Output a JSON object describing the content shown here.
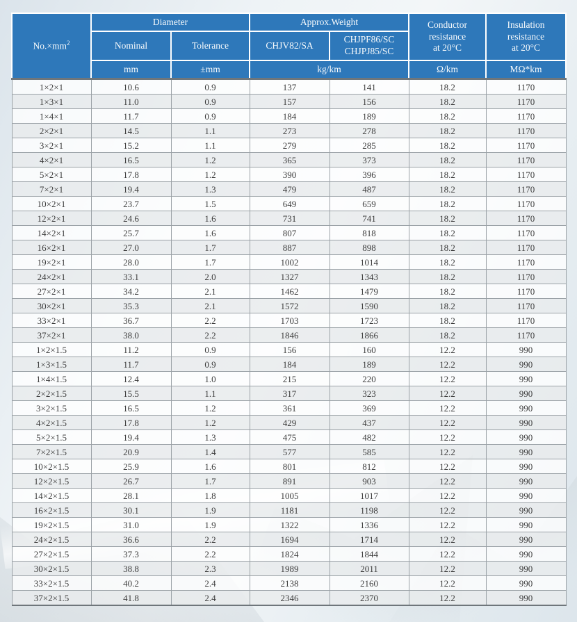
{
  "colors": {
    "header_blue": "#2e78ba",
    "row_alt": "rgba(233,235,237,0.82)",
    "grid_line": "#7e8488"
  },
  "table": {
    "header": {
      "no_label": "No.×mm",
      "no_sup": "2",
      "diameter": "Diameter",
      "nominal": "Nominal",
      "tolerance": "Tolerance",
      "approx_weight": "Approx.Weight",
      "chjv82": "CHJV82/SA",
      "chjpf86": "CHJPF86/SC\nCHJPJ85/SC",
      "conductor_resistance": "Conductor\nresistance\nat 20°C",
      "insulation_resistance": "Insulation\nresistance\nat 20°C",
      "units": {
        "mm": "mm",
        "tolerance": "±mm",
        "weight": "kg/km",
        "conductor": "Ω/km",
        "insulation": "MΩ*km"
      }
    },
    "columns": [
      "spec",
      "nominal-diameter",
      "tolerance",
      "weight-chjv82",
      "weight-chjpf86",
      "conductor-resistance",
      "insulation-resistance"
    ],
    "rows": [
      [
        "1×2×1",
        "10.6",
        "0.9",
        "137",
        "141",
        "18.2",
        "1170"
      ],
      [
        "1×3×1",
        "11.0",
        "0.9",
        "157",
        "156",
        "18.2",
        "1170"
      ],
      [
        "1×4×1",
        "11.7",
        "0.9",
        "184",
        "189",
        "18.2",
        "1170"
      ],
      [
        "2×2×1",
        "14.5",
        "1.1",
        "273",
        "278",
        "18.2",
        "1170"
      ],
      [
        "3×2×1",
        "15.2",
        "1.1",
        "279",
        "285",
        "18.2",
        "1170"
      ],
      [
        "4×2×1",
        "16.5",
        "1.2",
        "365",
        "373",
        "18.2",
        "1170"
      ],
      [
        "5×2×1",
        "17.8",
        "1.2",
        "390",
        "396",
        "18.2",
        "1170"
      ],
      [
        "7×2×1",
        "19.4",
        "1.3",
        "479",
        "487",
        "18.2",
        "1170"
      ],
      [
        "10×2×1",
        "23.7",
        "1.5",
        "649",
        "659",
        "18.2",
        "1170"
      ],
      [
        "12×2×1",
        "24.6",
        "1.6",
        "731",
        "741",
        "18.2",
        "1170"
      ],
      [
        "14×2×1",
        "25.7",
        "1.6",
        "807",
        "818",
        "18.2",
        "1170"
      ],
      [
        "16×2×1",
        "27.0",
        "1.7",
        "887",
        "898",
        "18.2",
        "1170"
      ],
      [
        "19×2×1",
        "28.0",
        "1.7",
        "1002",
        "1014",
        "18.2",
        "1170"
      ],
      [
        "24×2×1",
        "33.1",
        "2.0",
        "1327",
        "1343",
        "18.2",
        "1170"
      ],
      [
        "27×2×1",
        "34.2",
        "2.1",
        "1462",
        "1479",
        "18.2",
        "1170"
      ],
      [
        "30×2×1",
        "35.3",
        "2.1",
        "1572",
        "1590",
        "18.2",
        "1170"
      ],
      [
        "33×2×1",
        "36.7",
        "2.2",
        "1703",
        "1723",
        "18.2",
        "1170"
      ],
      [
        "37×2×1",
        "38.0",
        "2.2",
        "1846",
        "1866",
        "18.2",
        "1170"
      ],
      [
        "1×2×1.5",
        "11.2",
        "0.9",
        "156",
        "160",
        "12.2",
        "990"
      ],
      [
        "1×3×1.5",
        "11.7",
        "0.9",
        "184",
        "189",
        "12.2",
        "990"
      ],
      [
        "1×4×1.5",
        "12.4",
        "1.0",
        "215",
        "220",
        "12.2",
        "990"
      ],
      [
        "2×2×1.5",
        "15.5",
        "1.1",
        "317",
        "323",
        "12.2",
        "990"
      ],
      [
        "3×2×1.5",
        "16.5",
        "1.2",
        "361",
        "369",
        "12.2",
        "990"
      ],
      [
        "4×2×1.5",
        "17.8",
        "1.2",
        "429",
        "437",
        "12.2",
        "990"
      ],
      [
        "5×2×1.5",
        "19.4",
        "1.3",
        "475",
        "482",
        "12.2",
        "990"
      ],
      [
        "7×2×1.5",
        "20.9",
        "1.4",
        "577",
        "585",
        "12.2",
        "990"
      ],
      [
        "10×2×1.5",
        "25.9",
        "1.6",
        "801",
        "812",
        "12.2",
        "990"
      ],
      [
        "12×2×1.5",
        "26.7",
        "1.7",
        "891",
        "903",
        "12.2",
        "990"
      ],
      [
        "14×2×1.5",
        "28.1",
        "1.8",
        "1005",
        "1017",
        "12.2",
        "990"
      ],
      [
        "16×2×1.5",
        "30.1",
        "1.9",
        "1181",
        "1198",
        "12.2",
        "990"
      ],
      [
        "19×2×1.5",
        "31.0",
        "1.9",
        "1322",
        "1336",
        "12.2",
        "990"
      ],
      [
        "24×2×1.5",
        "36.6",
        "2.2",
        "1694",
        "1714",
        "12.2",
        "990"
      ],
      [
        "27×2×1.5",
        "37.3",
        "2.2",
        "1824",
        "1844",
        "12.2",
        "990"
      ],
      [
        "30×2×1.5",
        "38.8",
        "2.3",
        "1989",
        "2011",
        "12.2",
        "990"
      ],
      [
        "33×2×1.5",
        "40.2",
        "2.4",
        "2138",
        "2160",
        "12.2",
        "990"
      ],
      [
        "37×2×1.5",
        "41.8",
        "2.4",
        "2346",
        "2370",
        "12.2",
        "990"
      ]
    ]
  }
}
